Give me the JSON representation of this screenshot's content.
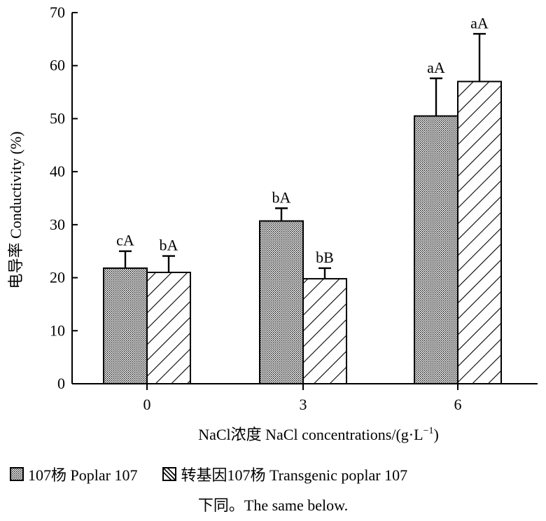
{
  "chart_data": {
    "type": "bar",
    "title": "",
    "ylabel": "电导率 Conductivity (%)",
    "xlabel": "NaCl浓度  NaCl concentrations/(g·L",
    "xlabel_sup": "−1",
    "xlabel_close": ")",
    "ylim": [
      0,
      70
    ],
    "yticks": [
      0,
      10,
      20,
      30,
      40,
      50,
      60,
      70
    ],
    "grid": false,
    "categories": [
      "0",
      "3",
      "6"
    ],
    "series": [
      {
        "name": "107杨  Poplar 107",
        "pattern": "dots",
        "values": [
          21.8,
          30.7,
          50.5
        ],
        "errors": [
          3.2,
          2.4,
          7.1
        ],
        "labels": [
          "cA",
          "bA",
          "aA"
        ]
      },
      {
        "name": "转基因107杨  Transgenic poplar 107",
        "pattern": "hatch",
        "values": [
          21.0,
          19.8,
          57.0
        ],
        "errors": [
          3.1,
          2.0,
          9.0
        ],
        "labels": [
          "bA",
          "bB",
          "aA"
        ]
      }
    ],
    "legend_position": "bottom"
  },
  "note": "下同。The same below."
}
